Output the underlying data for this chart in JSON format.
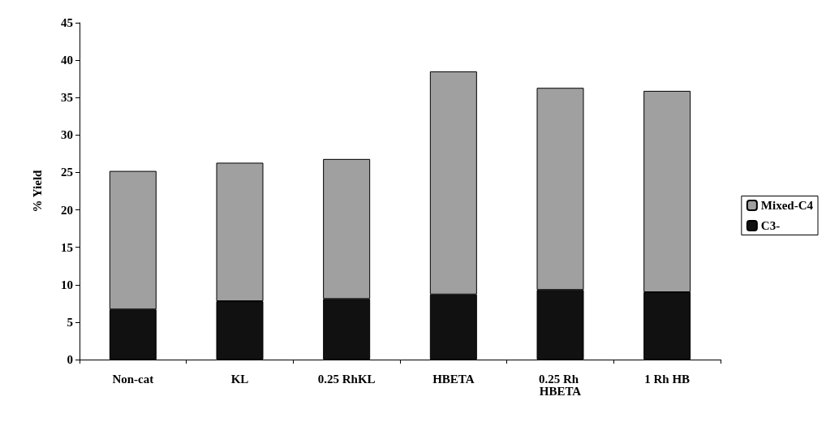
{
  "chart_data": {
    "type": "bar",
    "stacked": true,
    "ylabel": "% Yield",
    "categories": [
      "Non-cat",
      "KL",
      "0.25 RhKL",
      "HBETA",
      "0.25 Rh HBETA",
      "1 Rh HB"
    ],
    "series": [
      {
        "name": "C3-",
        "color": "#111111",
        "values": [
          6.7,
          7.8,
          8.1,
          8.7,
          9.3,
          9.0
        ]
      },
      {
        "name": "Mixed-C4",
        "color": "#a0a0a0",
        "values": [
          18.5,
          18.5,
          18.7,
          29.8,
          27.0,
          26.9
        ]
      }
    ],
    "ylim": [
      0,
      45
    ],
    "yticks": [
      0,
      5,
      10,
      15,
      20,
      25,
      30,
      35,
      40,
      45
    ],
    "grid": false,
    "legend": "right"
  }
}
